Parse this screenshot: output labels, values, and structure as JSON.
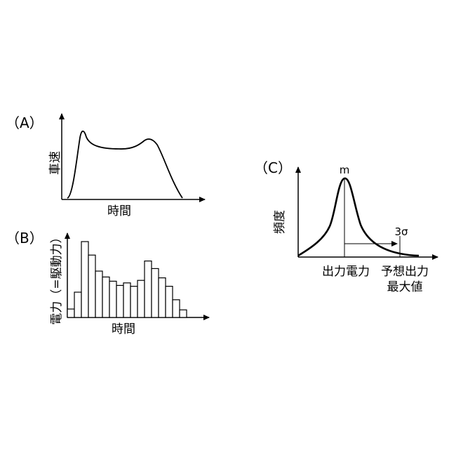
{
  "panels": {
    "a": {
      "label": "（A）",
      "ylabel": "車速",
      "xlabel": "時間"
    },
    "b": {
      "label": "（B）",
      "ylabel": "電力（=駆動力）",
      "xlabel": "時間",
      "bars": [
        1,
        3,
        9,
        7.4,
        5.5,
        4.8,
        4.3,
        3.8,
        4.1,
        3.7,
        4.4,
        6.7,
        5.8,
        4.7,
        3.7,
        2.1,
        0.9
      ]
    },
    "c": {
      "label": "（C）",
      "ylabel": "頻度",
      "xlabel": "出力電力",
      "peak_label": "m",
      "sigma_label": "3σ",
      "max_label_line1": "予想出力",
      "max_label_line2": "最大値"
    }
  }
}
